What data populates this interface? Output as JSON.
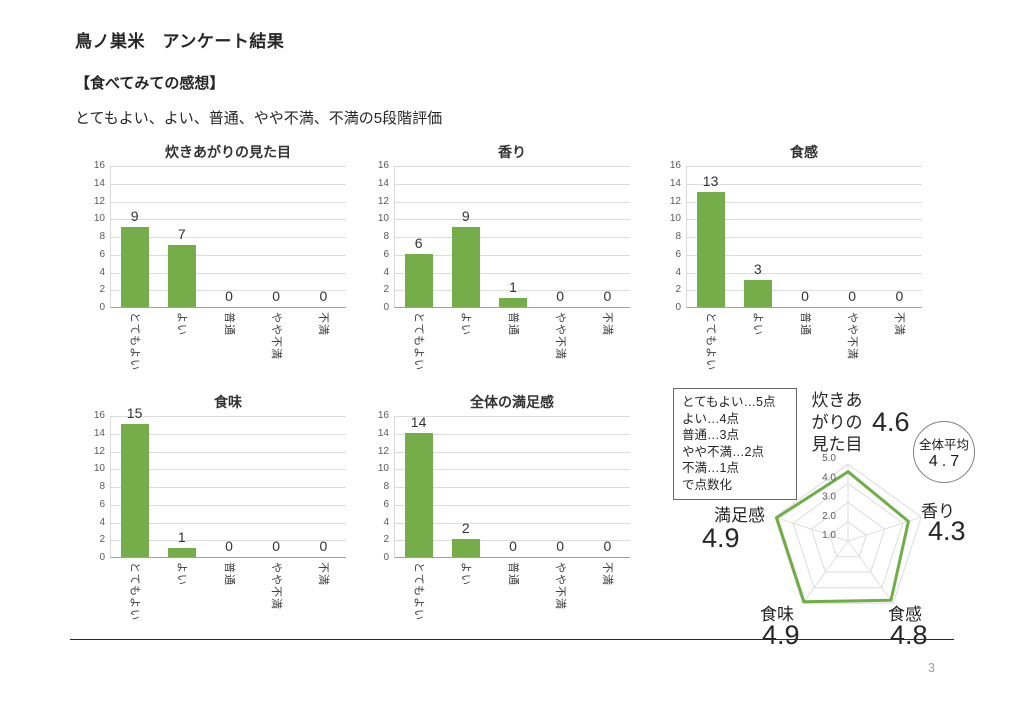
{
  "page": {
    "title": "鳥ノ巣米　アンケート結果",
    "section_heading": "【食べてみての感想】",
    "scale_note": "とてもよい、よい、普通、やや不満、不満の5段階評価",
    "page_number": "3"
  },
  "colors": {
    "bar_green": "#76ad4b",
    "radar_green": "#6fae47",
    "grid": "#dcdcdc",
    "spoke": "#dedede",
    "tick_label": "#595959"
  },
  "chart_data": [
    {
      "type": "bar",
      "title": "炊きあがりの見た目",
      "categories": [
        "とてもよい",
        "よい",
        "普通",
        "やや不満",
        "不満"
      ],
      "values": [
        9,
        7,
        0,
        0,
        0
      ],
      "ylim": [
        0,
        16
      ],
      "ytick_step": 2,
      "grid": true,
      "bar_color": "#76ad4b"
    },
    {
      "type": "bar",
      "title": "香り",
      "categories": [
        "とてもよい",
        "よい",
        "普通",
        "やや不満",
        "不満"
      ],
      "values": [
        6,
        9,
        1,
        0,
        0
      ],
      "ylim": [
        0,
        16
      ],
      "ytick_step": 2,
      "grid": true,
      "bar_color": "#76ad4b"
    },
    {
      "type": "bar",
      "title": "食感",
      "categories": [
        "とてもよい",
        "よい",
        "普通",
        "やや不満",
        "不満"
      ],
      "values": [
        13,
        3,
        0,
        0,
        0
      ],
      "ylim": [
        0,
        16
      ],
      "ytick_step": 2,
      "grid": true,
      "bar_color": "#76ad4b"
    },
    {
      "type": "bar",
      "title": "食味",
      "categories": [
        "とてもよい",
        "よい",
        "普通",
        "やや不満",
        "不満"
      ],
      "values": [
        15,
        1,
        0,
        0,
        0
      ],
      "ylim": [
        0,
        16
      ],
      "ytick_step": 2,
      "grid": true,
      "bar_color": "#76ad4b"
    },
    {
      "type": "bar",
      "title": "全体の満足感",
      "categories": [
        "とてもよい",
        "よい",
        "普通",
        "やや不満",
        "不満"
      ],
      "values": [
        14,
        2,
        0,
        0,
        0
      ],
      "ylim": [
        0,
        16
      ],
      "ytick_step": 2,
      "grid": true,
      "bar_color": "#76ad4b"
    },
    {
      "type": "radar",
      "axes": [
        "炊きあがりの見た目",
        "香り",
        "食感",
        "食味",
        "満足感"
      ],
      "values": [
        4.6,
        4.3,
        4.8,
        4.9,
        4.9
      ],
      "scale_min": 1,
      "scale_max": 5,
      "ring_labels": [
        "5.0",
        "4.0",
        "3.0",
        "2.0",
        "1.0"
      ],
      "line_color": "#6fae47"
    }
  ],
  "radar_panel": {
    "legend_lines": [
      "とてもよい…5点",
      "よい…4点",
      "普通…3点",
      "やや不満…2点",
      "不満…1点",
      "で点数化"
    ],
    "top_axis_lines": [
      "炊きあ",
      "がりの",
      "見た目"
    ],
    "axis_names": {
      "kaori": "香り",
      "shokkan": "食感",
      "shokumi": "食味",
      "manzoku": "満足感"
    },
    "axis_values": {
      "mitame": "4.6",
      "kaori": "4.3",
      "shokkan": "4.8",
      "shokumi": "4.9",
      "manzoku": "4.9"
    },
    "overall_label": "全体平均",
    "overall_value": "4.7"
  }
}
